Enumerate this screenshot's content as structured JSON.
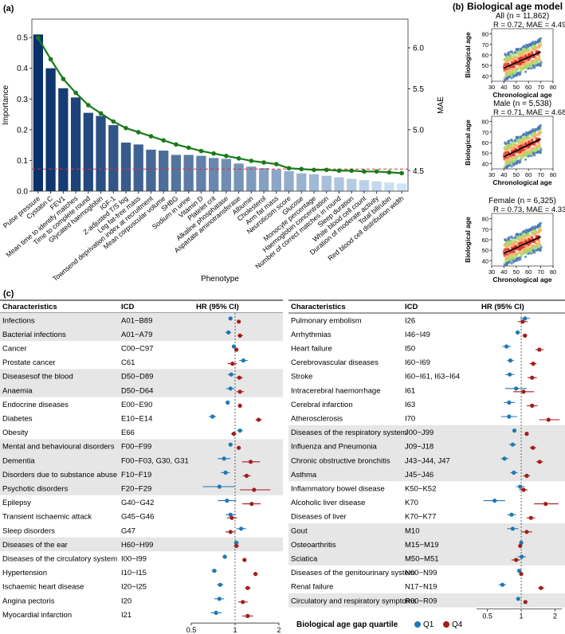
{
  "panels": {
    "a": {
      "label": "(a)"
    },
    "b": {
      "label": "(b)",
      "title": "Biological age model"
    },
    "c": {
      "label": "(c)"
    }
  },
  "colors": {
    "q1": "#1f78b4",
    "q4": "#a51c1c",
    "mae_line": "#1a7a1a",
    "ref_line": "#e0302e",
    "row_shade": "#e6e6e6",
    "dashed": "#555555"
  },
  "chart_data": [
    {
      "id": "importance",
      "type": "bar",
      "title": "",
      "xlabel": "Phenotype",
      "ylabel": "Importance",
      "y2label": "MAE",
      "ylim": [
        0,
        0.56
      ],
      "y2lim": [
        4.25,
        6.35
      ],
      "yticks": [
        "0.0",
        "0.1",
        "0.2",
        "0.3",
        "0.4",
        "0.5"
      ],
      "y2ticks": [
        "4.5",
        "5.0",
        "5.5",
        "6.0"
      ],
      "reference_line_mae": 4.52,
      "categories": [
        "Pulse pressure",
        "Cystatin C",
        "FEV1",
        "Mean time to identify matches",
        "Time to complete round",
        "Glycated haemoglobin",
        "IGF-1",
        "Z-adjusted T/S log",
        "Leg fat-free mass",
        "Townsend deprivation index at recruitment",
        "Mean corpuscular volume",
        "SHBG",
        "Sodium in urine",
        "Vitamin D",
        "Platelet crit",
        "Alkaline phosphatase",
        "Aspartate aminotransferase",
        "Albumin",
        "Cholesterol",
        "Arm fat mass",
        "Neuroticism score",
        "Glucose",
        "Monocyte percentage",
        "Haemoglobin concentration",
        "Number of correct matches in round",
        "Sleep duration",
        "White blood cell count",
        "Duration of moderate activity",
        "Total bilirubin",
        "Red blood cell distribution width"
      ],
      "series": [
        {
          "name": "Importance",
          "values": [
            0.51,
            0.4,
            0.335,
            0.305,
            0.255,
            0.245,
            0.215,
            0.158,
            0.152,
            0.135,
            0.132,
            0.118,
            0.118,
            0.115,
            0.108,
            0.105,
            0.09,
            0.08,
            0.075,
            0.07,
            0.065,
            0.058,
            0.055,
            0.05,
            0.045,
            0.04,
            0.036,
            0.032,
            0.028,
            0.025
          ]
        },
        {
          "name": "MAE",
          "values": [
            6.12,
            5.86,
            5.62,
            5.45,
            5.3,
            5.2,
            5.1,
            5.02,
            4.97,
            4.92,
            4.87,
            4.82,
            4.78,
            4.74,
            4.71,
            4.68,
            4.65,
            4.62,
            4.6,
            4.58,
            4.53,
            4.52,
            4.51,
            4.51,
            4.5,
            4.5,
            4.49,
            4.49,
            4.48,
            4.47
          ]
        }
      ]
    },
    {
      "id": "scatter-all",
      "type": "scatter",
      "title": "All (n = 11,862)",
      "stats": "R = 0.72, MAE = 4.49",
      "xlabel": "Chronological age",
      "ylabel": "Biological age",
      "xlim": [
        30,
        80
      ],
      "ylim": [
        35,
        85
      ],
      "xticks": [
        "30",
        "40",
        "50",
        "60",
        "70",
        "80"
      ],
      "yticks": [
        "40",
        "50",
        "60",
        "70",
        "80"
      ],
      "fit_line": [
        [
          40,
          47.5
        ],
        [
          70,
          63
        ]
      ]
    },
    {
      "id": "scatter-male",
      "type": "scatter",
      "title": "Male (n = 5,538)",
      "stats": "R = 0.71, MAE = 4.68",
      "xlabel": "Chronological age",
      "ylabel": "Biological age",
      "xlim": [
        30,
        80
      ],
      "ylim": [
        35,
        85
      ],
      "xticks": [
        "30",
        "40",
        "50",
        "60",
        "70",
        "80"
      ],
      "yticks": [
        "40",
        "50",
        "60",
        "70",
        "80"
      ],
      "fit_line": [
        [
          40,
          46.5
        ],
        [
          70,
          63.5
        ]
      ]
    },
    {
      "id": "scatter-female",
      "type": "scatter",
      "title": "Female (n = 6,325)",
      "stats": "R = 0.73, MAE = 4.33",
      "xlabel": "Chronological age",
      "ylabel": "Biological age",
      "xlim": [
        30,
        80
      ],
      "ylim": [
        35,
        85
      ],
      "xticks": [
        "30",
        "40",
        "50",
        "60",
        "70",
        "80"
      ],
      "yticks": [
        "40",
        "50",
        "60",
        "70",
        "80"
      ],
      "fit_line": [
        [
          40,
          47
        ],
        [
          70,
          63
        ]
      ]
    },
    {
      "id": "forest-left",
      "type": "table",
      "headers": {
        "characteristics": "Characteristics",
        "icd": "ICD",
        "hr": "HR (95% CI)"
      },
      "xaxis": {
        "ticks": [
          "0.5",
          "1",
          "2"
        ],
        "tick_values": [
          0.5,
          1,
          2
        ],
        "range": [
          0.5,
          2
        ],
        "scale": "log"
      },
      "rows": [
        {
          "name": "Infections",
          "icd": "A01−B89",
          "shaded": true,
          "q1": [
            0.93,
            0.9,
            0.96
          ],
          "q4": [
            1.06,
            1.03,
            1.09
          ]
        },
        {
          "name": "Bacterial infections",
          "icd": "A01−A79",
          "shaded": true,
          "q1": [
            0.9,
            0.86,
            0.94
          ],
          "q4": [
            1.08,
            1.04,
            1.13
          ]
        },
        {
          "name": "Cancer",
          "icd": "C00−C97",
          "shaded": false,
          "q1": [
            0.98,
            0.95,
            1.01
          ],
          "q4": [
            1.02,
            0.99,
            1.05
          ]
        },
        {
          "name": "Prostate cancer",
          "icd": "C61",
          "shaded": false,
          "q1": [
            1.14,
            1.07,
            1.22
          ],
          "q4": [
            0.96,
            0.89,
            1.03
          ]
        },
        {
          "name": "Diseasesof the blood",
          "icd": "D50−D89",
          "shaded": true,
          "q1": [
            0.94,
            0.89,
            0.99
          ],
          "q4": [
            1.07,
            1.02,
            1.13
          ]
        },
        {
          "name": "Anaemia",
          "icd": "D50−D64",
          "shaded": true,
          "q1": [
            0.93,
            0.87,
            0.99
          ],
          "q4": [
            1.08,
            1.02,
            1.15
          ]
        },
        {
          "name": "Endocrine diseases",
          "icd": "E00−E90",
          "shaded": false,
          "q1": [
            0.89,
            0.86,
            0.92
          ],
          "q4": [
            1.08,
            1.05,
            1.11
          ]
        },
        {
          "name": "Diabetes",
          "icd": "E10−E14",
          "shaded": false,
          "q1": [
            0.7,
            0.66,
            0.74
          ],
          "q4": [
            1.45,
            1.38,
            1.53
          ]
        },
        {
          "name": "Obesity",
          "icd": "E66",
          "shaded": false,
          "q1": [
            1.08,
            1.03,
            1.13
          ],
          "q4": [
            0.98,
            0.94,
            1.02
          ]
        },
        {
          "name": "Mental and behavioural disorders",
          "icd": "F00−F99",
          "shaded": true,
          "q1": [
            0.93,
            0.9,
            0.96
          ],
          "q4": [
            1.06,
            1.03,
            1.09
          ]
        },
        {
          "name": "Dementia",
          "icd": "F00−F03, G30, G31",
          "shaded": true,
          "q1": [
            0.84,
            0.76,
            0.93
          ],
          "q4": [
            1.28,
            1.12,
            1.48
          ]
        },
        {
          "name": "Disorders due to substance abuse",
          "icd": "F10−F19",
          "shaded": true,
          "q1": [
            0.86,
            0.8,
            0.92
          ],
          "q4": [
            1.2,
            1.13,
            1.28
          ]
        },
        {
          "name": "Psychotic disorders",
          "icd": "F20−F29",
          "shaded": true,
          "q1": [
            0.78,
            0.6,
            1.0
          ],
          "q4": [
            1.35,
            1.08,
            1.75
          ]
        },
        {
          "name": "Epilepsy",
          "icd": "G40−G42",
          "shaded": false,
          "q1": [
            0.88,
            0.76,
            1.02
          ],
          "q4": [
            1.3,
            1.12,
            1.5
          ]
        },
        {
          "name": "Transient ischaemic attack",
          "icd": "G45−G46",
          "shaded": false,
          "q1": [
            0.93,
            0.86,
            1.01
          ],
          "q4": [
            0.95,
            0.88,
            1.03
          ]
        },
        {
          "name": "Sleep disorders",
          "icd": "G47",
          "shaded": false,
          "q1": [
            1.1,
            1.02,
            1.19
          ],
          "q4": [
            0.93,
            0.86,
            1.01
          ]
        },
        {
          "name": "Diseases of the ear",
          "icd": "H60−H99",
          "shaded": true,
          "q1": [
            1.02,
            0.98,
            1.06
          ],
          "q4": [
            1.02,
            0.98,
            1.06
          ]
        },
        {
          "name": "Diseases of the circulatory system",
          "icd": "I00−I99",
          "shaded": false,
          "q1": [
            0.85,
            0.82,
            0.88
          ],
          "q4": [
            1.16,
            1.13,
            1.19
          ]
        },
        {
          "name": "Hypertension",
          "icd": "I10−I15",
          "shaded": false,
          "q1": [
            0.72,
            0.69,
            0.75
          ],
          "q4": [
            1.38,
            1.34,
            1.43
          ]
        },
        {
          "name": "Ischaemic heart disease",
          "icd": "I20−I25",
          "shaded": false,
          "q1": [
            0.79,
            0.75,
            0.83
          ],
          "q4": [
            1.22,
            1.17,
            1.28
          ]
        },
        {
          "name": "Angina pectoris",
          "icd": "I20",
          "shaded": false,
          "q1": [
            0.78,
            0.72,
            0.84
          ],
          "q4": [
            1.13,
            1.05,
            1.22
          ]
        },
        {
          "name": "Myocardial infarction",
          "icd": "I21",
          "shaded": false,
          "q1": [
            0.74,
            0.68,
            0.81
          ],
          "q4": [
            1.22,
            1.12,
            1.33
          ]
        }
      ]
    },
    {
      "id": "forest-right",
      "type": "table",
      "headers": {
        "characteristics": "Characteristics",
        "icd": "ICD",
        "hr": "HR (95% CI)"
      },
      "xaxis": {
        "ticks": [
          "0.5",
          "1",
          "2"
        ],
        "tick_values": [
          0.5,
          1,
          2
        ],
        "range": [
          0.4,
          2.3
        ],
        "scale": "log"
      },
      "rows": [
        {
          "name": "Pulmonary embolism",
          "icd": "I26",
          "shaded": false,
          "q1": [
            1.08,
            0.98,
            1.19
          ],
          "q4": [
            1.03,
            0.93,
            1.14
          ]
        },
        {
          "name": "Arrhythmias",
          "icd": "I46−I49",
          "shaded": false,
          "q1": [
            0.93,
            0.89,
            0.97
          ],
          "q4": [
            1.08,
            1.03,
            1.13
          ]
        },
        {
          "name": "Heart failure",
          "icd": "I50",
          "shaded": false,
          "q1": [
            0.74,
            0.68,
            0.81
          ],
          "q4": [
            1.45,
            1.34,
            1.58
          ]
        },
        {
          "name": "Cerebrovascular diseases",
          "icd": "I60−I69",
          "shaded": false,
          "q1": [
            0.8,
            0.75,
            0.86
          ],
          "q4": [
            1.28,
            1.19,
            1.37
          ]
        },
        {
          "name": "Stroke",
          "icd": "I60−I61, I63−I64",
          "shaded": false,
          "q1": [
            0.79,
            0.72,
            0.87
          ],
          "q4": [
            1.25,
            1.14,
            1.38
          ]
        },
        {
          "name": "Intracerebral haemorrhage",
          "icd": "I61",
          "shaded": false,
          "q1": [
            0.9,
            0.72,
            1.12
          ],
          "q4": [
            1.05,
            0.85,
            1.3
          ]
        },
        {
          "name": "Cerebral infarction",
          "icd": "I63",
          "shaded": false,
          "q1": [
            0.78,
            0.7,
            0.88
          ],
          "q4": [
            1.25,
            1.12,
            1.4
          ]
        },
        {
          "name": "Atherosclerosis",
          "icd": "I70",
          "shaded": false,
          "q1": [
            0.78,
            0.66,
            0.92
          ],
          "q4": [
            1.75,
            1.45,
            2.2
          ]
        },
        {
          "name": "Diseases of the respiratory system",
          "icd": "J00−J99",
          "shaded": true,
          "q1": [
            0.87,
            0.84,
            0.9
          ],
          "q4": [
            1.12,
            1.09,
            1.15
          ]
        },
        {
          "name": "Influenza and Pneumonia",
          "icd": "J09−J18",
          "shaded": true,
          "q1": [
            0.84,
            0.78,
            0.9
          ],
          "q4": [
            1.27,
            1.19,
            1.36
          ]
        },
        {
          "name": "Chronic obstructive bronchitis",
          "icd": "J43−J44, J47",
          "shaded": true,
          "q1": [
            0.71,
            0.66,
            0.77
          ],
          "q4": [
            1.46,
            1.36,
            1.57
          ]
        },
        {
          "name": "Asthma",
          "icd": "J45−J46",
          "shaded": true,
          "q1": [
            0.86,
            0.8,
            0.93
          ],
          "q4": [
            1.12,
            1.04,
            1.2
          ]
        },
        {
          "name": "Inflammatory bowel disease",
          "icd": "K50−K52",
          "shaded": false,
          "q1": [
            0.98,
            0.9,
            1.07
          ],
          "q4": [
            1.05,
            0.96,
            1.14
          ]
        },
        {
          "name": "Alcoholic liver disease",
          "icd": "K70",
          "shaded": false,
          "q1": [
            0.58,
            0.46,
            0.72
          ],
          "q4": [
            1.65,
            1.3,
            2.15
          ]
        },
        {
          "name": "Diseases of liver",
          "icd": "K70−K77",
          "shaded": false,
          "q1": [
            0.82,
            0.75,
            0.9
          ],
          "q4": [
            1.22,
            1.12,
            1.33
          ]
        },
        {
          "name": "Gout",
          "icd": "M10",
          "shaded": true,
          "q1": [
            0.84,
            0.75,
            0.94
          ],
          "q4": [
            1.12,
            1.0,
            1.25
          ]
        },
        {
          "name": "Osteoarthritis",
          "icd": "M15−M19",
          "shaded": true,
          "q1": [
            1.0,
            0.96,
            1.04
          ],
          "q4": [
            0.98,
            0.94,
            1.02
          ]
        },
        {
          "name": "Sciatica",
          "icd": "M50−M51",
          "shaded": true,
          "q1": [
            1.01,
            0.93,
            1.1
          ],
          "q4": [
            0.9,
            0.82,
            0.98
          ]
        },
        {
          "name": "Diseases of the genitourinary system",
          "icd": "N00−N99",
          "shaded": false,
          "q1": [
            0.96,
            0.93,
            0.99
          ],
          "q4": [
            1.0,
            0.97,
            1.03
          ]
        },
        {
          "name": "Renal failure",
          "icd": "N17−N19",
          "shaded": false,
          "q1": [
            0.68,
            0.63,
            0.73
          ],
          "q4": [
            1.5,
            1.41,
            1.6
          ]
        },
        {
          "name": "Circulatory and respiratory symptoms",
          "icd": "R00−R09",
          "shaded": true,
          "q1": [
            0.94,
            0.91,
            0.97
          ],
          "q4": [
            1.09,
            1.06,
            1.12
          ]
        }
      ]
    }
  ],
  "legend": {
    "title": "Biological age gap quartile",
    "items": [
      "Q1",
      "Q4"
    ]
  }
}
